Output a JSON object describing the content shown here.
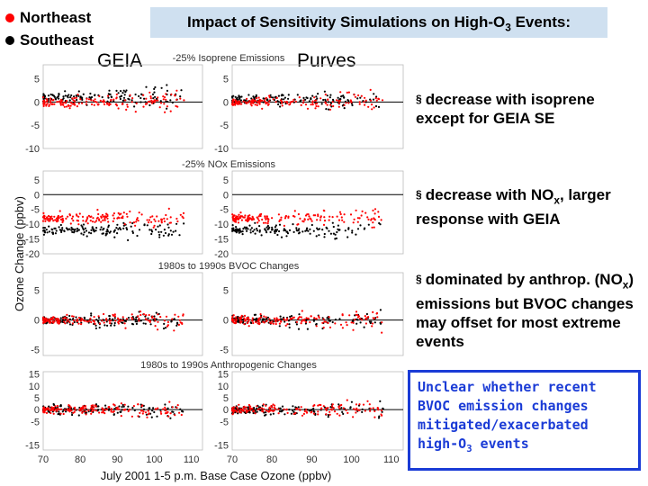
{
  "legend": {
    "items": [
      {
        "label": "Northeast",
        "color": "#ff0000"
      },
      {
        "label": "Southeast",
        "color": "#000000"
      }
    ]
  },
  "title": {
    "prefix": "Impact of Sensitivity Simulations on High-O",
    "sub": "3",
    "suffix": " Events:"
  },
  "columns": {
    "left": "GEIA",
    "right": "Purves"
  },
  "chart_data": {
    "type": "scatter",
    "ylabel": "Ozone Change (ppbv)",
    "xlabel": "July 2001 1-5 p.m. Base Case Ozone (ppbv)",
    "xticks": [
      70,
      80,
      90,
      100,
      110
    ],
    "xlim": [
      70,
      113
    ],
    "panels": [
      {
        "title": "-25% Isoprene Emissions",
        "ylim": [
          -10,
          8
        ],
        "yticks": [
          5,
          0,
          -5,
          -10
        ],
        "ne_mean": 0,
        "se_mean": 0.5,
        "geia_se_mean": 1.0
      },
      {
        "title": "-25% NOx Emissions",
        "ylim": [
          -20,
          8
        ],
        "yticks": [
          5,
          0,
          -5,
          -10,
          -15,
          -20
        ],
        "ne_mean": -8,
        "se_mean": -12
      },
      {
        "title": "1980s to 1990s BVOC Changes",
        "ylim": [
          -6,
          8
        ],
        "yticks": [
          5,
          0,
          -5
        ],
        "ne_mean": 0,
        "se_mean": 0
      },
      {
        "title": "1980s to 1990s Anthropogenic Changes",
        "ylim": [
          -17,
          16
        ],
        "yticks": [
          15,
          10,
          5,
          0,
          -5,
          -15
        ],
        "ne_mean": 0,
        "se_mean": 0
      }
    ],
    "series": [
      {
        "name": "Northeast",
        "color": "#ff0000"
      },
      {
        "name": "Southeast",
        "color": "#000000"
      }
    ]
  },
  "bullets": [
    {
      "mark": "§",
      "text": "decrease with isoprene except for GEIA SE"
    },
    {
      "mark": "§",
      "text": "decrease with NO",
      "sub": "x",
      "tail": ", larger response with GEIA"
    },
    {
      "mark": "§",
      "text": "dominated by anthrop. (NO",
      "sub": "x",
      "tail": ") emissions but BVOC changes may offset for most extreme events"
    }
  ],
  "note": {
    "text": "Unclear whether recent BVOC emission changes mitigated/exacerbated high-O",
    "sub": "3",
    "tail": " events"
  }
}
